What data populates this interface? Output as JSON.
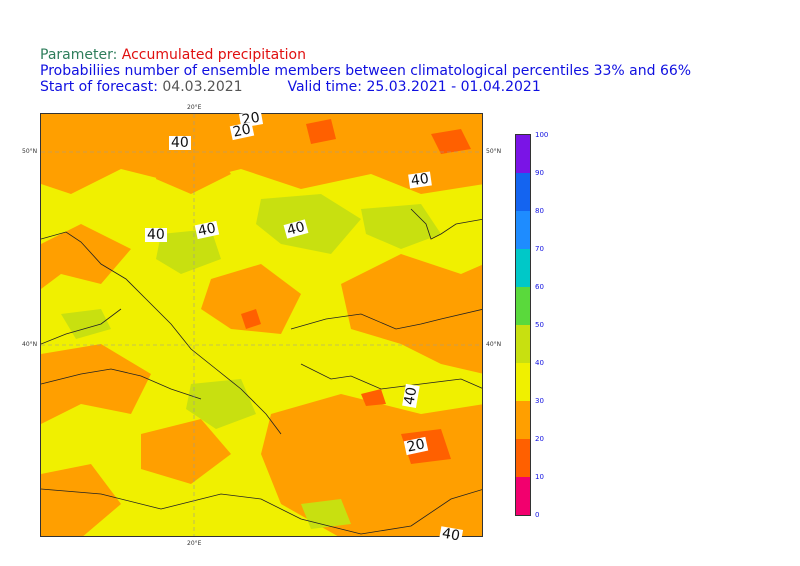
{
  "header": {
    "parameter_label": "Parameter:",
    "parameter_value": "Accumulated precipitation",
    "description": "Probabiliies number of ensemble members between climatological percentiles 33% and 66%",
    "start_label": "Start of forecast:",
    "start_value": "04.03.2021",
    "valid_label": "Valid time:",
    "valid_value": "25.03.2021 - 01.04.2021"
  },
  "axes": {
    "lon_top": "20°E",
    "lon_bottom": "20°E",
    "lat_50_left": "50°N",
    "lat_50_right": "50°N",
    "lat_40_left": "40°N",
    "lat_40_right": "40°N"
  },
  "colorbar": {
    "ticks": [
      "0",
      "10",
      "20",
      "30",
      "40",
      "50",
      "60",
      "70",
      "80",
      "90",
      "100"
    ],
    "colors": [
      "#f2006e",
      "#ff6000",
      "#ff9f00",
      "#f0f000",
      "#c8e010",
      "#5ad93c",
      "#00c8c8",
      "#1e8cff",
      "#1464f0",
      "#7a14e6"
    ]
  },
  "contour_labels": [
    "20",
    "20",
    "40",
    "40",
    "40",
    "40",
    "40",
    "40",
    "20",
    "40"
  ]
}
